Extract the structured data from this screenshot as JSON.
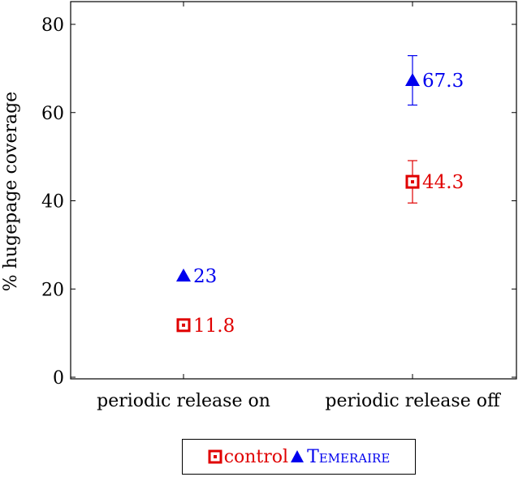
{
  "chart_data": {
    "type": "scatter",
    "categories": [
      "periodic release on",
      "periodic release off"
    ],
    "ylabel": "% hugepage coverage",
    "xlabel": "",
    "ylim": [
      0,
      85
    ],
    "yticks": [
      0,
      20,
      40,
      60,
      80
    ],
    "grid": false,
    "legend_position": "bottom",
    "series": [
      {
        "name": "control",
        "marker": "square",
        "color": "#e00000",
        "values": [
          11.8,
          44.3
        ],
        "errors": [
          0.0,
          4.8
        ],
        "labels": [
          "11.8",
          "44.3"
        ]
      },
      {
        "name": "Temeraire",
        "marker": "triangle",
        "color": "#0000ee",
        "values": [
          23,
          67.3
        ],
        "errors": [
          0.0,
          5.6
        ],
        "labels": [
          "23",
          "67.3"
        ]
      }
    ]
  },
  "legend": {
    "control_label": "control",
    "temeraire_label": "Temeraire"
  }
}
